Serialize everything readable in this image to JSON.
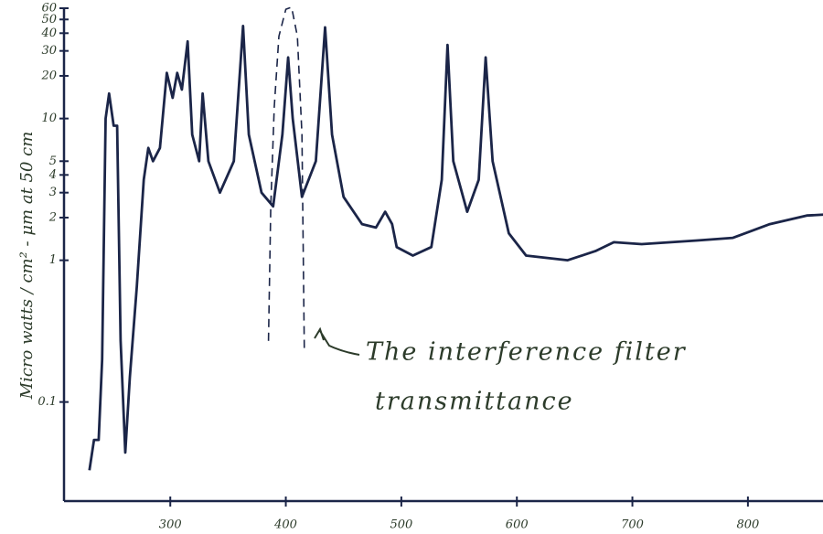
{
  "chart_data": {
    "type": "line",
    "y_label": "Micro watts / cm² - μm at 50 cm",
    "annotation": [
      "The interference filter",
      "transmittance"
    ],
    "log_y": true,
    "xlim": [
      208,
      865
    ],
    "ylim": [
      0.02,
      60
    ],
    "xticks": [
      300,
      400,
      500,
      600,
      700,
      800
    ],
    "yticks": [
      0.1,
      1,
      2,
      3,
      4,
      5,
      10,
      20,
      30,
      40,
      50,
      60
    ],
    "series": [
      {
        "color": "#1b2548",
        "dashed": false,
        "x": [
          230,
          234,
          238,
          241,
          244,
          247,
          251,
          254,
          257,
          261,
          265,
          271,
          277,
          281,
          285,
          291,
          297,
          302,
          306,
          310,
          315,
          319,
          325,
          328,
          333,
          343,
          355,
          363,
          368,
          379,
          389,
          397,
          402,
          406,
          414,
          426,
          434,
          440,
          450,
          466,
          478,
          486,
          492,
          496,
          510,
          526,
          535,
          540,
          545,
          557,
          567,
          573,
          579,
          593,
          608,
          644,
          668,
          684,
          708,
          756,
          787,
          819,
          851,
          866
        ],
        "values": [
          0.033,
          0.054,
          0.054,
          0.2,
          10,
          15,
          8.9,
          8.9,
          0.27,
          0.044,
          0.15,
          0.65,
          3.7,
          6.2,
          5,
          6.2,
          21,
          14,
          21,
          16,
          35,
          7.7,
          5,
          15,
          5,
          3,
          5,
          45,
          7.7,
          3,
          2.4,
          7.7,
          27,
          10,
          2.8,
          5,
          44,
          7.7,
          2.8,
          1.8,
          1.7,
          2.2,
          1.8,
          1.24,
          1.08,
          1.24,
          3.7,
          33,
          5,
          2.2,
          3.7,
          27,
          5,
          1.55,
          1.08,
          1,
          1.16,
          1.34,
          1.3,
          1.38,
          1.44,
          1.8,
          2.07,
          2.1
        ]
      },
      {
        "color": "#1b2548",
        "dashed": true,
        "x": [
          385,
          387,
          390,
          394,
          400,
          405,
          410,
          414,
          416
        ],
        "values": [
          0.27,
          2.4,
          12,
          38,
          59,
          61,
          38,
          7.7,
          0.23
        ]
      }
    ]
  }
}
